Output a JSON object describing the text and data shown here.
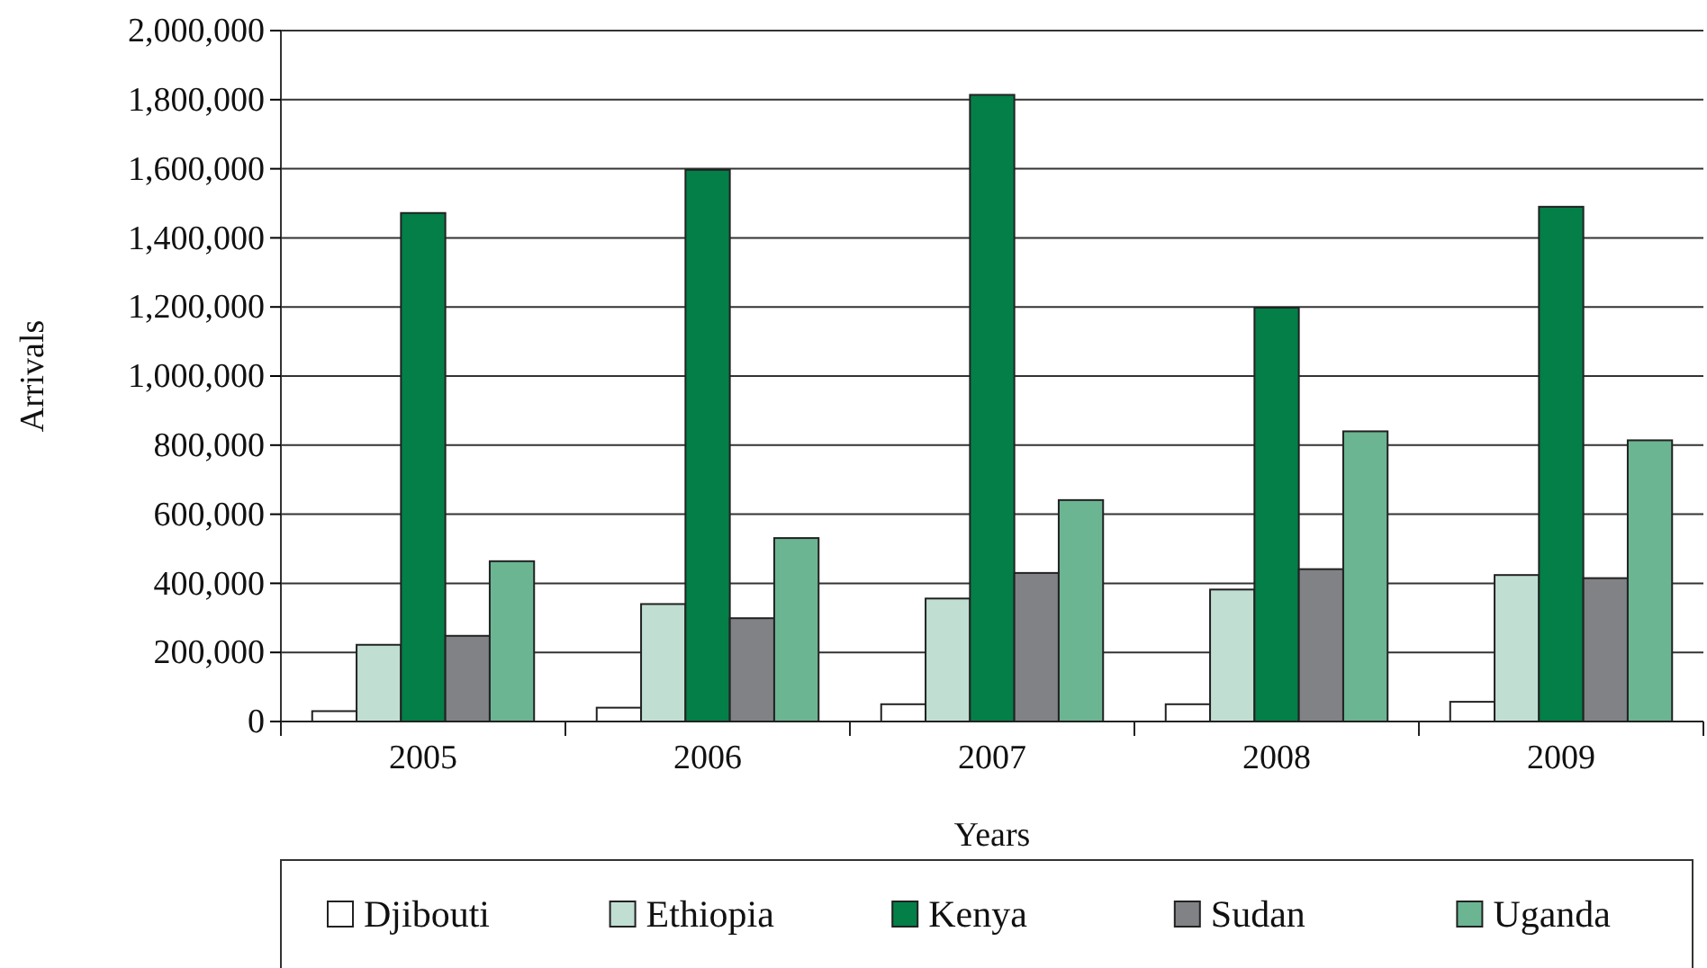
{
  "chart_data": {
    "type": "bar",
    "xlabel": "Years",
    "ylabel": "Arrivals",
    "categories": [
      "2005",
      "2006",
      "2007",
      "2008",
      "2009"
    ],
    "series": [
      {
        "name": "Djibouti",
        "color": "#ffffff",
        "values": [
          30000,
          40000,
          50000,
          50000,
          57000
        ]
      },
      {
        "name": "Ethiopia",
        "color": "#c0dfd2",
        "values": [
          222000,
          340000,
          356000,
          382000,
          424000
        ]
      },
      {
        "name": "Kenya",
        "color": "#037f47",
        "values": [
          1472000,
          1597000,
          1814000,
          1198000,
          1490000
        ]
      },
      {
        "name": "Sudan",
        "color": "#808285",
        "values": [
          248000,
          299000,
          430000,
          441000,
          415000
        ]
      },
      {
        "name": "Uganda",
        "color": "#6bb592",
        "values": [
          464000,
          531000,
          641000,
          840000,
          814000
        ]
      }
    ],
    "ylim": [
      0,
      2000000
    ],
    "yticks": [
      {
        "value": 0,
        "label": "0"
      },
      {
        "value": 200000,
        "label": "200,000"
      },
      {
        "value": 400000,
        "label": "400,000"
      },
      {
        "value": 600000,
        "label": "600,000"
      },
      {
        "value": 800000,
        "label": "800,000"
      },
      {
        "value": 1000000,
        "label": "1,000,000"
      },
      {
        "value": 1200000,
        "label": "1,200,000"
      },
      {
        "value": 1400000,
        "label": "1,400,000"
      },
      {
        "value": 1600000,
        "label": "1,600,000"
      },
      {
        "value": 1800000,
        "label": "1,800,000"
      },
      {
        "value": 2000000,
        "label": "2,000,000"
      }
    ],
    "grid": "y",
    "legend": "bottom"
  }
}
